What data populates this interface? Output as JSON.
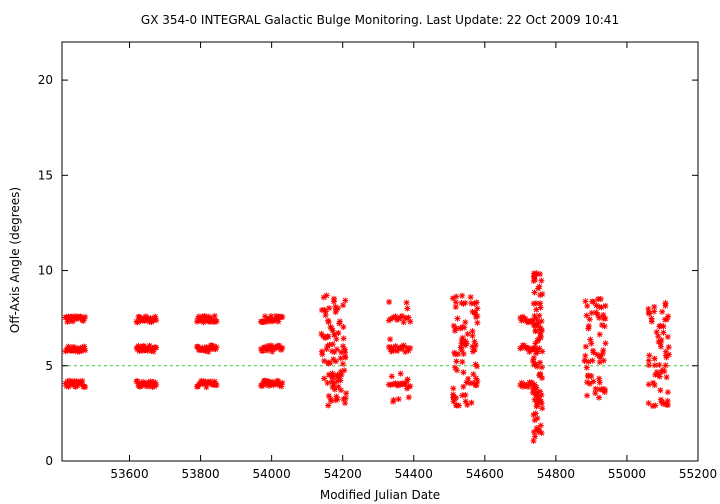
{
  "chart_data": {
    "type": "scatter",
    "title": "GX 354-0   INTEGRAL Galactic Bulge Monitoring.  Last Update: 22 Oct 2009 10:41",
    "xlabel": "Modified Julian Date",
    "ylabel": "Off-Axis Angle (degrees)",
    "xlim": [
      53410,
      55200
    ],
    "ylim": [
      0,
      22
    ],
    "x_ticks": [
      53600,
      53800,
      54000,
      54200,
      54400,
      54600,
      54800,
      55000,
      55200
    ],
    "y_ticks": [
      0,
      5,
      10,
      15,
      20
    ],
    "grid": false,
    "legend": "none",
    "marker": "asterisk",
    "colors": {
      "points": "#ff0000",
      "reference_line": "#33cc33"
    },
    "reference_line": {
      "y": 5.0,
      "style": "dashed"
    },
    "groups": [
      {
        "x_range": [
          53420,
          53475
        ],
        "pattern": "bands",
        "bands": [
          4.05,
          5.9,
          7.45
        ],
        "count_per_band": 22
      },
      {
        "x_range": [
          53620,
          53675
        ],
        "pattern": "bands",
        "bands": [
          4.05,
          5.9,
          7.45
        ],
        "count_per_band": 22
      },
      {
        "x_range": [
          53790,
          53845
        ],
        "pattern": "bands",
        "bands": [
          4.05,
          5.9,
          7.45
        ],
        "count_per_band": 22
      },
      {
        "x_range": [
          53970,
          54030
        ],
        "pattern": "bands",
        "bands": [
          4.05,
          5.9,
          7.45
        ],
        "count_per_band": 22
      },
      {
        "x_range": [
          54140,
          54210
        ],
        "pattern": "scatter",
        "y_range": [
          2.9,
          8.7
        ],
        "count": 90
      },
      {
        "x_range": [
          54330,
          54390
        ],
        "pattern": "bands",
        "bands": [
          4.05,
          5.9,
          7.45
        ],
        "count_per_band": 14,
        "extra_y_range": [
          2.9,
          8.4
        ],
        "extra_count": 18
      },
      {
        "x_range": [
          54510,
          54580
        ],
        "pattern": "scatter",
        "y_range": [
          2.9,
          8.7
        ],
        "count": 80
      },
      {
        "x_range": [
          54700,
          54740
        ],
        "pattern": "bands",
        "bands": [
          4.05,
          5.9,
          7.45
        ],
        "count_per_band": 12
      },
      {
        "x_range": [
          54735,
          54762
        ],
        "pattern": "scatter",
        "y_range": [
          1.0,
          9.9
        ],
        "count": 90
      },
      {
        "x_range": [
          54880,
          54940
        ],
        "pattern": "scatter",
        "y_range": [
          3.0,
          8.6
        ],
        "count": 60
      },
      {
        "x_range": [
          55060,
          55120
        ],
        "pattern": "scatter",
        "y_range": [
          2.8,
          8.6
        ],
        "count": 60
      }
    ]
  }
}
